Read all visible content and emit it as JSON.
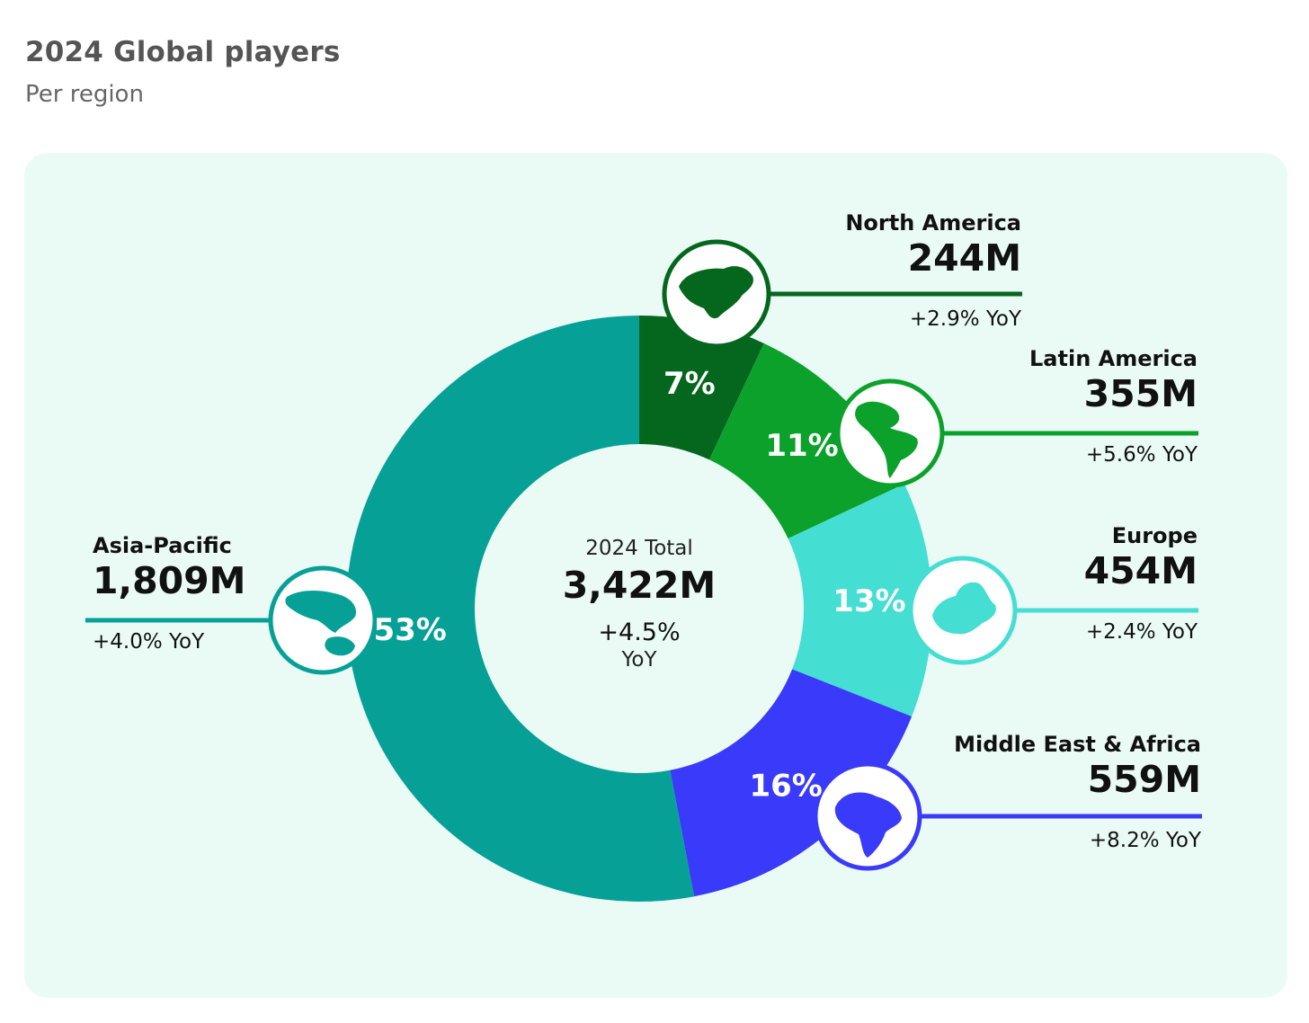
{
  "header": {
    "title": "2024 Global players",
    "subtitle": "Per region"
  },
  "center": {
    "label": "2024 Total",
    "value": "3,422M",
    "yoy_value": "+4.5%",
    "yoy_unit": "YoY"
  },
  "chart_data": {
    "type": "pie",
    "title": "2024 Global players",
    "subtitle": "Per region",
    "series": [
      {
        "name": "North America",
        "share_pct": 7,
        "share_label": "7%",
        "players": 244,
        "players_label": "244M",
        "yoy": 2.9,
        "yoy_label": "+2.9% YoY",
        "color": "#05661e",
        "icon": "north-america-map-icon"
      },
      {
        "name": "Latin America",
        "share_pct": 11,
        "share_label": "11%",
        "players": 355,
        "players_label": "355M",
        "yoy": 5.6,
        "yoy_label": "+5.6% YoY",
        "color": "#0ba12b",
        "icon": "latin-america-map-icon"
      },
      {
        "name": "Europe",
        "share_pct": 13,
        "share_label": "13%",
        "players": 454,
        "players_label": "454M",
        "yoy": 2.4,
        "yoy_label": "+2.4% YoY",
        "color": "#44ded2",
        "icon": "europe-map-icon"
      },
      {
        "name": "Middle East & Africa",
        "share_pct": 16,
        "share_label": "16%",
        "players": 559,
        "players_label": "559M",
        "yoy": 8.2,
        "yoy_label": "+8.2% YoY",
        "color": "#3a3afa",
        "icon": "africa-middle-east-map-icon"
      },
      {
        "name": "Asia-Pacific",
        "share_pct": 53,
        "share_label": "53%",
        "players": 1809,
        "players_label": "1,809M",
        "yoy": 4.0,
        "yoy_label": "+4.0% YoY",
        "color": "#06a096",
        "icon": "asia-pacific-map-icon"
      }
    ],
    "total": 3422,
    "total_label": "3,422M",
    "total_yoy": 4.5
  },
  "colors": {
    "panel_background": "#eafbf6",
    "title_text": "#555555"
  }
}
